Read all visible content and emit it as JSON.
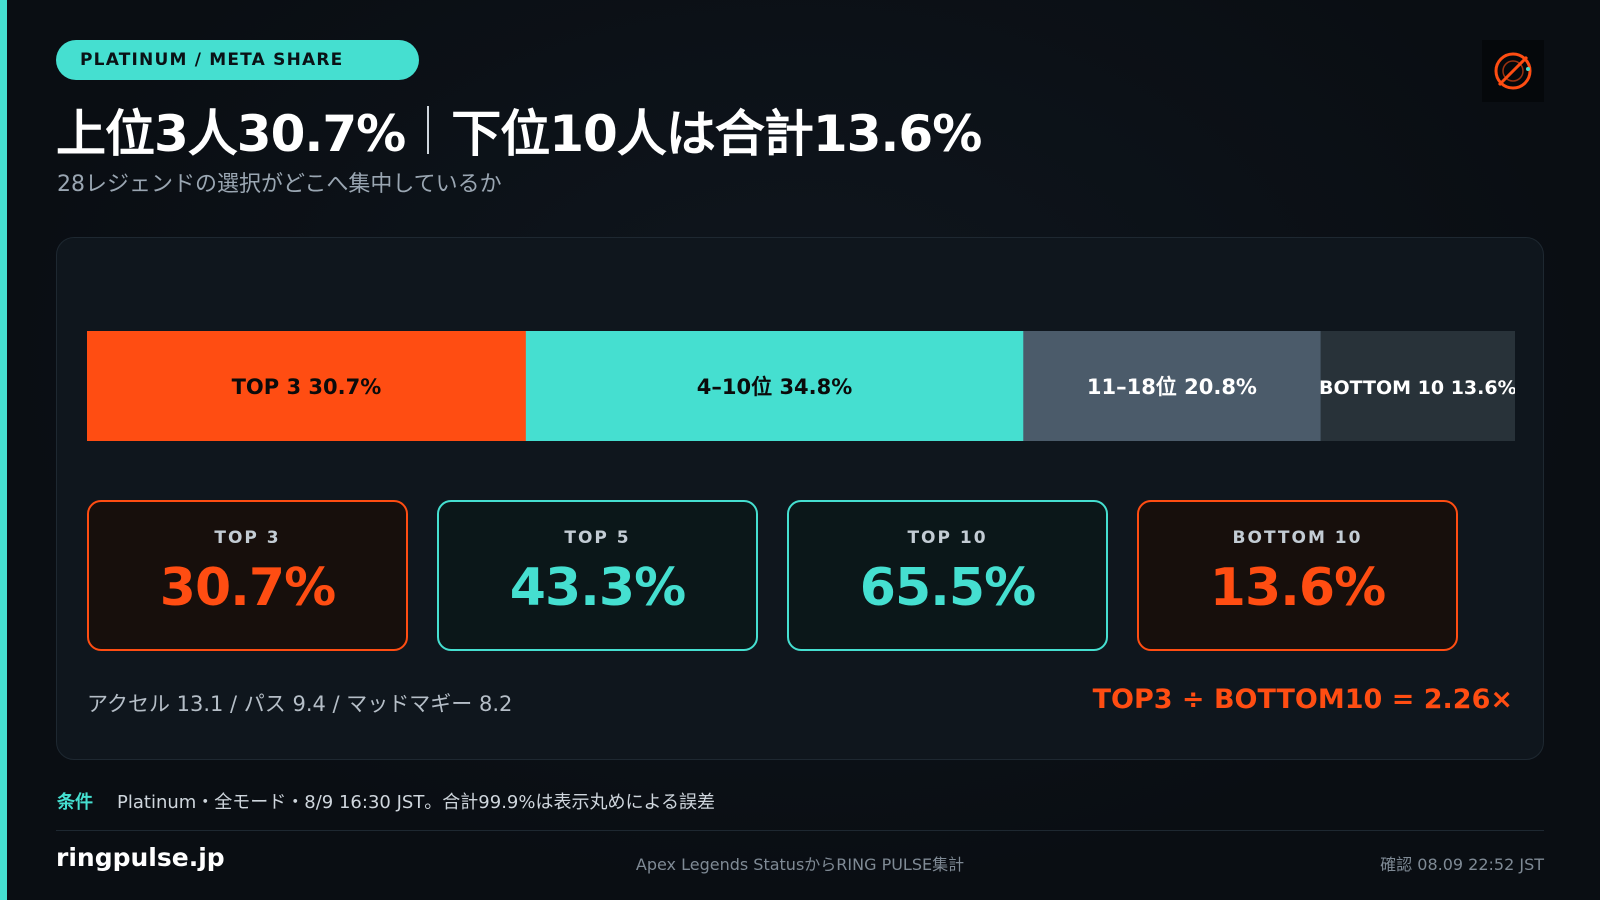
{
  "badge": "PLATINUM / META SHARE",
  "headline": {
    "left": "上位3人30.7%",
    "right": "下位10人は合計13.6%"
  },
  "subtitle": "28レジェンドの選択がどこへ集中しているか",
  "colors": {
    "accent": "#45dfd0",
    "warm": "#ff4d12",
    "mid": "#4b5b6a",
    "dark": "#283239",
    "bg": "#0b1016"
  },
  "chart_data": {
    "type": "bar",
    "orientation": "horizontal-stacked",
    "segments": [
      {
        "label": "TOP 3 30.7%",
        "value": 30.7,
        "color": "#ff4d12",
        "text_color": "#0b0b0b"
      },
      {
        "label": "4–10位 34.8%",
        "value": 34.8,
        "color": "#45dfd0",
        "text_color": "#0b0b0b"
      },
      {
        "label": "11–18位 20.8%",
        "value": 20.8,
        "color": "#4b5b6a",
        "text_color": "#ffffff"
      },
      {
        "label": "BOTTOM 10 13.6%",
        "value": 13.6,
        "color": "#283239",
        "text_color": "#ffffff"
      }
    ],
    "total": 99.9
  },
  "cards": [
    {
      "label": "TOP 3",
      "value": "30.7%",
      "tone": "warm"
    },
    {
      "label": "TOP 5",
      "value": "43.3%",
      "tone": "cool"
    },
    {
      "label": "TOP 10",
      "value": "65.5%",
      "tone": "cool"
    },
    {
      "label": "BOTTOM 10",
      "value": "13.6%",
      "tone": "warm"
    }
  ],
  "note": "アクセル 13.1 / パス 9.4 / マッドマギー 8.2",
  "ratio": "TOP3 ÷ BOTTOM10 = 2.26×",
  "condition": {
    "key": "条件",
    "text": "Platinum・全モード・8/9 16:30 JST。合計99.9%は表示丸めによる誤差"
  },
  "footer": {
    "domain": "ringpulse.jp",
    "source": "Apex Legends StatusからRING PULSE集計",
    "stamp": "確認 08.09 22:52 JST"
  },
  "icons": {
    "logo": "ring-target-logo-icon"
  }
}
